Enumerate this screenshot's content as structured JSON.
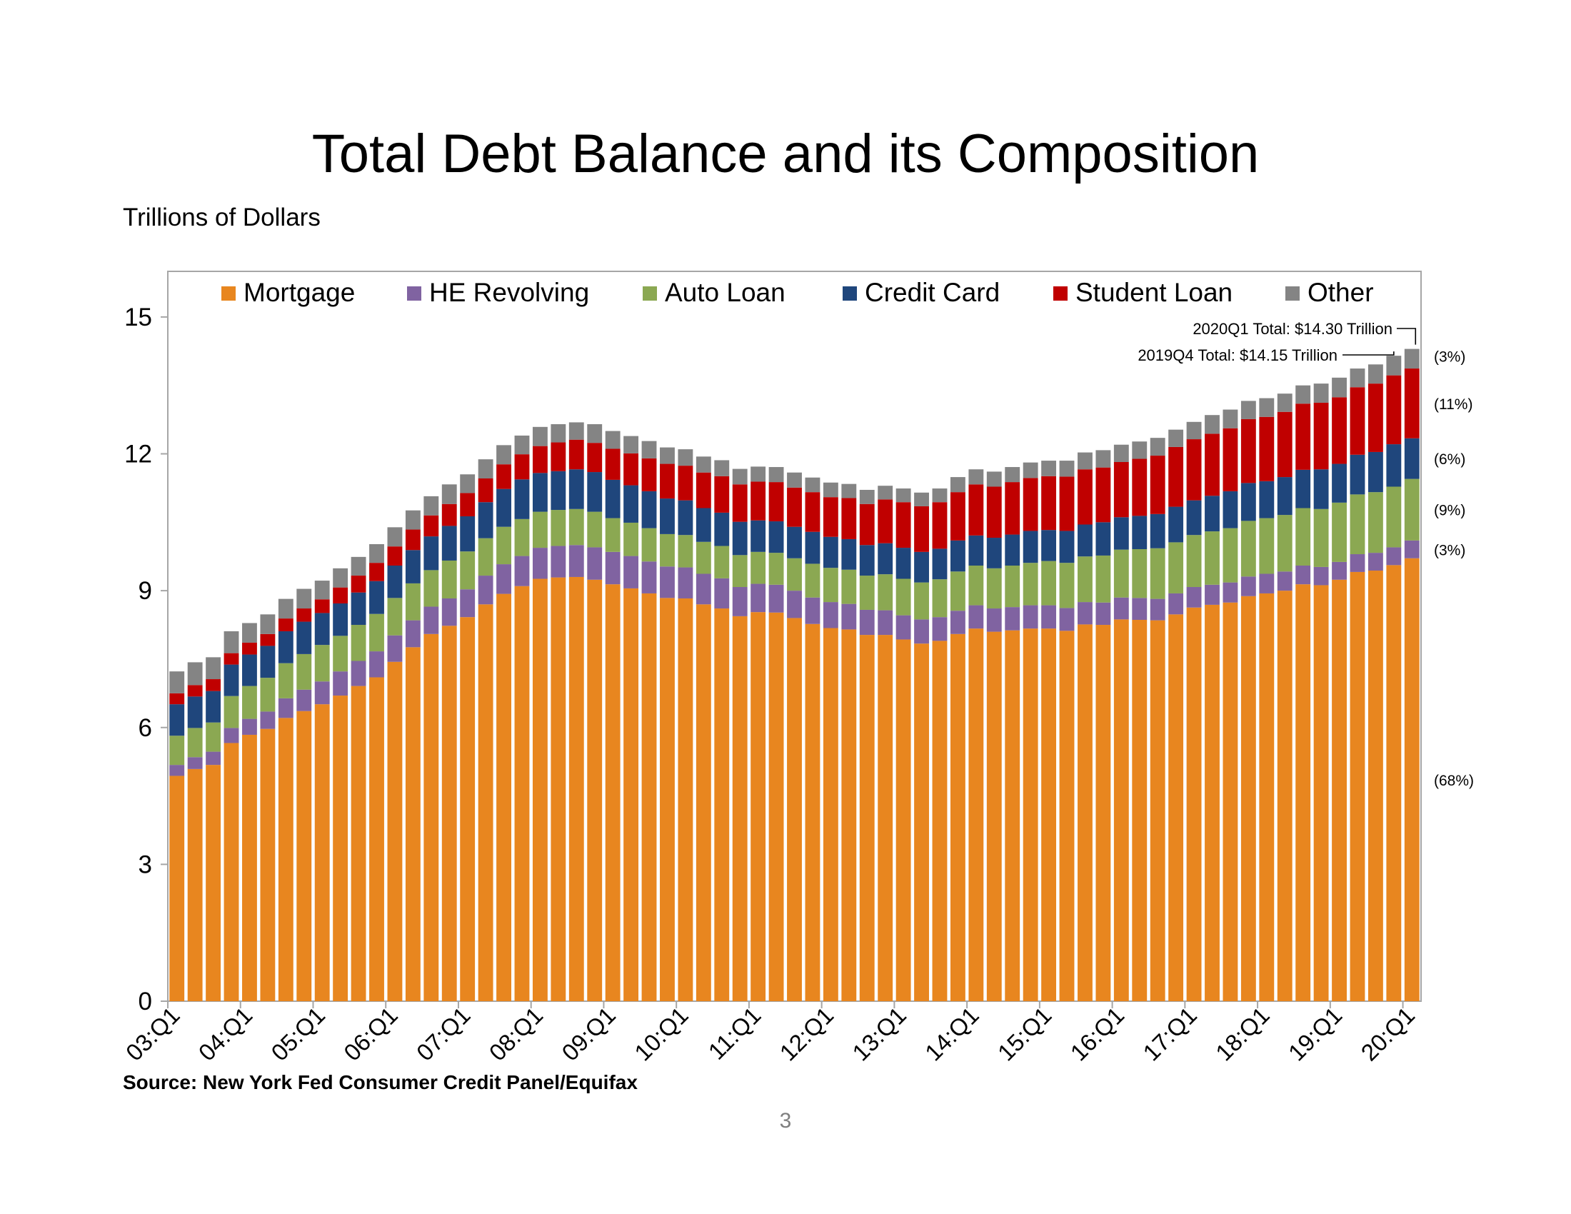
{
  "title": "Total Debt Balance and its Composition",
  "units_label": "Trillions of Dollars",
  "source": "Source: New York Fed Consumer Credit Panel/Equifax",
  "page_number": "3",
  "colors": {
    "Mortgage": "#E8861F",
    "HE Revolving": "#8063A1",
    "Auto Loan": "#8BA852",
    "Credit Card": "#1F467C",
    "Student Loan": "#C00000",
    "Other": "#848484"
  },
  "chart_data": {
    "type": "bar",
    "stacked": true,
    "title": "Total Debt Balance and its Composition",
    "ylabel": "Trillions of Dollars",
    "ylim": [
      0,
      16
    ],
    "yticks": [
      0,
      3,
      6,
      9,
      12,
      15
    ],
    "legend_position": "top",
    "grid": false,
    "categories": [
      "03:Q1",
      "03:Q2",
      "03:Q3",
      "03:Q4",
      "04:Q1",
      "04:Q2",
      "04:Q3",
      "04:Q4",
      "05:Q1",
      "05:Q2",
      "05:Q3",
      "05:Q4",
      "06:Q1",
      "06:Q2",
      "06:Q3",
      "06:Q4",
      "07:Q1",
      "07:Q2",
      "07:Q3",
      "07:Q4",
      "08:Q1",
      "08:Q2",
      "08:Q3",
      "08:Q4",
      "09:Q1",
      "09:Q2",
      "09:Q3",
      "09:Q4",
      "10:Q1",
      "10:Q2",
      "10:Q3",
      "10:Q4",
      "11:Q1",
      "11:Q2",
      "11:Q3",
      "11:Q4",
      "12:Q1",
      "12:Q2",
      "12:Q3",
      "12:Q4",
      "13:Q1",
      "13:Q2",
      "13:Q3",
      "13:Q4",
      "14:Q1",
      "14:Q2",
      "14:Q3",
      "14:Q4",
      "15:Q1",
      "15:Q2",
      "15:Q3",
      "15:Q4",
      "16:Q1",
      "16:Q2",
      "16:Q3",
      "16:Q4",
      "17:Q1",
      "17:Q2",
      "17:Q3",
      "17:Q4",
      "18:Q1",
      "18:Q2",
      "18:Q3",
      "18:Q4",
      "19:Q1",
      "19:Q2",
      "19:Q3",
      "19:Q4",
      "20:Q1"
    ],
    "x_tick_labels": [
      "03:Q1",
      "04:Q1",
      "05:Q1",
      "06:Q1",
      "07:Q1",
      "08:Q1",
      "09:Q1",
      "10:Q1",
      "11:Q1",
      "12:Q1",
      "13:Q1",
      "14:Q1",
      "15:Q1",
      "16:Q1",
      "17:Q1",
      "18:Q1",
      "19:Q1",
      "20:Q1"
    ],
    "series": [
      {
        "name": "Mortgage",
        "values": [
          4.94,
          5.09,
          5.18,
          5.66,
          5.84,
          5.97,
          6.21,
          6.36,
          6.51,
          6.7,
          6.91,
          7.1,
          7.44,
          7.76,
          8.05,
          8.23,
          8.42,
          8.7,
          8.93,
          9.1,
          9.26,
          9.29,
          9.3,
          9.24,
          9.14,
          9.05,
          8.94,
          8.84,
          8.83,
          8.7,
          8.61,
          8.44,
          8.53,
          8.52,
          8.4,
          8.27,
          8.18,
          8.15,
          8.03,
          8.03,
          7.93,
          7.84,
          7.9,
          8.05,
          8.17,
          8.1,
          8.13,
          8.17,
          8.17,
          8.12,
          8.26,
          8.25,
          8.37,
          8.36,
          8.35,
          8.48,
          8.63,
          8.69,
          8.74,
          8.88,
          8.94,
          9.0,
          9.14,
          9.12,
          9.24,
          9.41,
          9.44,
          9.56,
          9.71
        ]
      },
      {
        "name": "HE Revolving",
        "values": [
          0.24,
          0.26,
          0.29,
          0.33,
          0.35,
          0.38,
          0.43,
          0.47,
          0.5,
          0.53,
          0.55,
          0.57,
          0.58,
          0.59,
          0.6,
          0.6,
          0.61,
          0.63,
          0.65,
          0.66,
          0.68,
          0.69,
          0.7,
          0.71,
          0.71,
          0.71,
          0.7,
          0.69,
          0.68,
          0.67,
          0.66,
          0.64,
          0.62,
          0.61,
          0.6,
          0.58,
          0.57,
          0.56,
          0.55,
          0.54,
          0.53,
          0.53,
          0.52,
          0.51,
          0.51,
          0.51,
          0.51,
          0.51,
          0.51,
          0.5,
          0.49,
          0.49,
          0.48,
          0.48,
          0.47,
          0.46,
          0.45,
          0.44,
          0.44,
          0.43,
          0.43,
          0.42,
          0.41,
          0.4,
          0.39,
          0.39,
          0.39,
          0.39,
          0.39
        ]
      },
      {
        "name": "Auto Loan",
        "values": [
          0.64,
          0.64,
          0.64,
          0.7,
          0.72,
          0.74,
          0.77,
          0.78,
          0.8,
          0.78,
          0.79,
          0.82,
          0.82,
          0.81,
          0.8,
          0.83,
          0.83,
          0.82,
          0.82,
          0.81,
          0.79,
          0.79,
          0.79,
          0.78,
          0.74,
          0.73,
          0.73,
          0.71,
          0.71,
          0.7,
          0.71,
          0.7,
          0.7,
          0.7,
          0.71,
          0.74,
          0.75,
          0.75,
          0.75,
          0.79,
          0.8,
          0.81,
          0.83,
          0.86,
          0.87,
          0.88,
          0.91,
          0.93,
          0.97,
          0.99,
          1.0,
          1.03,
          1.05,
          1.07,
          1.11,
          1.12,
          1.14,
          1.17,
          1.19,
          1.22,
          1.22,
          1.24,
          1.26,
          1.27,
          1.3,
          1.31,
          1.33,
          1.33,
          1.35
        ]
      },
      {
        "name": "Credit Card",
        "values": [
          0.69,
          0.69,
          0.69,
          0.69,
          0.69,
          0.7,
          0.7,
          0.71,
          0.7,
          0.71,
          0.71,
          0.72,
          0.71,
          0.73,
          0.74,
          0.76,
          0.77,
          0.79,
          0.83,
          0.87,
          0.85,
          0.85,
          0.87,
          0.87,
          0.84,
          0.82,
          0.81,
          0.78,
          0.76,
          0.74,
          0.73,
          0.73,
          0.69,
          0.69,
          0.69,
          0.7,
          0.68,
          0.67,
          0.67,
          0.68,
          0.68,
          0.67,
          0.67,
          0.68,
          0.66,
          0.67,
          0.68,
          0.7,
          0.68,
          0.7,
          0.7,
          0.73,
          0.71,
          0.73,
          0.75,
          0.78,
          0.76,
          0.78,
          0.81,
          0.83,
          0.81,
          0.83,
          0.84,
          0.87,
          0.85,
          0.87,
          0.88,
          0.93,
          0.89
        ]
      },
      {
        "name": "Student Loan",
        "values": [
          0.24,
          0.25,
          0.26,
          0.25,
          0.26,
          0.26,
          0.28,
          0.29,
          0.3,
          0.35,
          0.37,
          0.4,
          0.42,
          0.45,
          0.46,
          0.48,
          0.51,
          0.52,
          0.54,
          0.55,
          0.59,
          0.63,
          0.65,
          0.64,
          0.68,
          0.7,
          0.72,
          0.76,
          0.76,
          0.78,
          0.8,
          0.82,
          0.85,
          0.86,
          0.86,
          0.87,
          0.87,
          0.9,
          0.9,
          0.96,
          1.0,
          1.0,
          1.02,
          1.06,
          1.12,
          1.12,
          1.15,
          1.16,
          1.18,
          1.19,
          1.21,
          1.2,
          1.21,
          1.25,
          1.28,
          1.31,
          1.34,
          1.36,
          1.38,
          1.4,
          1.41,
          1.43,
          1.45,
          1.46,
          1.46,
          1.48,
          1.5,
          1.51,
          1.53
        ]
      },
      {
        "name": "Other",
        "values": [
          0.48,
          0.5,
          0.48,
          0.48,
          0.43,
          0.43,
          0.43,
          0.43,
          0.41,
          0.42,
          0.41,
          0.41,
          0.42,
          0.42,
          0.42,
          0.43,
          0.41,
          0.42,
          0.42,
          0.41,
          0.42,
          0.4,
          0.38,
          0.41,
          0.39,
          0.38,
          0.38,
          0.36,
          0.36,
          0.35,
          0.35,
          0.34,
          0.33,
          0.33,
          0.33,
          0.32,
          0.32,
          0.31,
          0.31,
          0.3,
          0.3,
          0.3,
          0.3,
          0.33,
          0.33,
          0.33,
          0.33,
          0.34,
          0.34,
          0.35,
          0.37,
          0.38,
          0.38,
          0.38,
          0.39,
          0.38,
          0.38,
          0.41,
          0.41,
          0.4,
          0.41,
          0.4,
          0.4,
          0.42,
          0.43,
          0.41,
          0.42,
          0.43,
          0.43
        ]
      }
    ],
    "annotations": [
      {
        "text": "2020Q1 Total: $14.30 Trillion",
        "x": "20:Q1",
        "y": 14.3
      },
      {
        "text": "2019Q4 Total: $14.15 Trillion",
        "x": "19:Q4",
        "y": 14.15
      }
    ],
    "share_labels": [
      {
        "series": "Other",
        "text": "(3%)"
      },
      {
        "series": "Student Loan",
        "text": "(11%)"
      },
      {
        "series": "Credit Card",
        "text": "(6%)"
      },
      {
        "series": "Auto Loan",
        "text": "(9%)"
      },
      {
        "series": "HE Revolving",
        "text": "(3%)"
      },
      {
        "series": "Mortgage",
        "text": "(68%)"
      }
    ]
  }
}
